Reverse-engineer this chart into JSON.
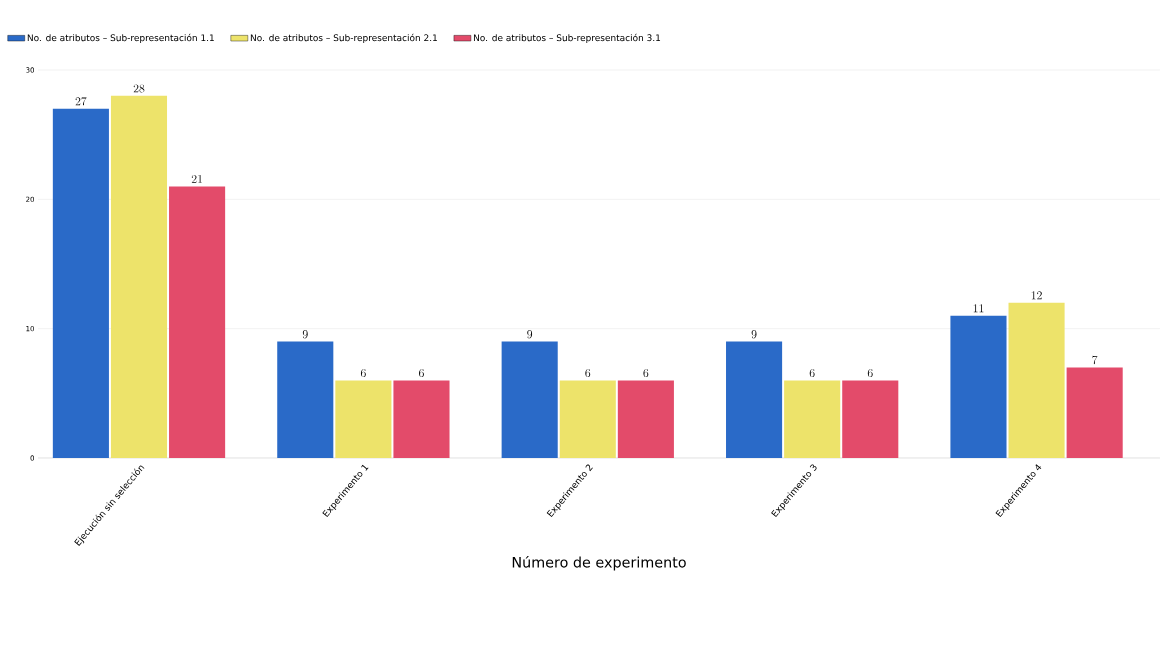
{
  "chart_data": {
    "type": "bar",
    "xlabel": "Número de experimento",
    "categories": [
      "Ejecución sin selección",
      "Experimento 1",
      "Experimento 2",
      "Experimento 3",
      "Experimento 4"
    ],
    "series": [
      {
        "name": "No. de atributos – Sub-representación 1.1",
        "color": "#2a6ac8",
        "values": [
          27,
          9,
          9,
          9,
          11
        ]
      },
      {
        "name": "No. de atributos – Sub-representación 2.1",
        "color": "#ede36a",
        "values": [
          28,
          6,
          6,
          6,
          12
        ]
      },
      {
        "name": "No. de atributos – Sub-representación 3.1",
        "color": "#e34b6a",
        "values": [
          21,
          6,
          6,
          6,
          7
        ]
      }
    ],
    "ylim": [
      0,
      30
    ],
    "yticks": [
      0,
      10,
      20,
      30
    ],
    "grid": "y",
    "legend": "top left",
    "data_labels": true
  }
}
